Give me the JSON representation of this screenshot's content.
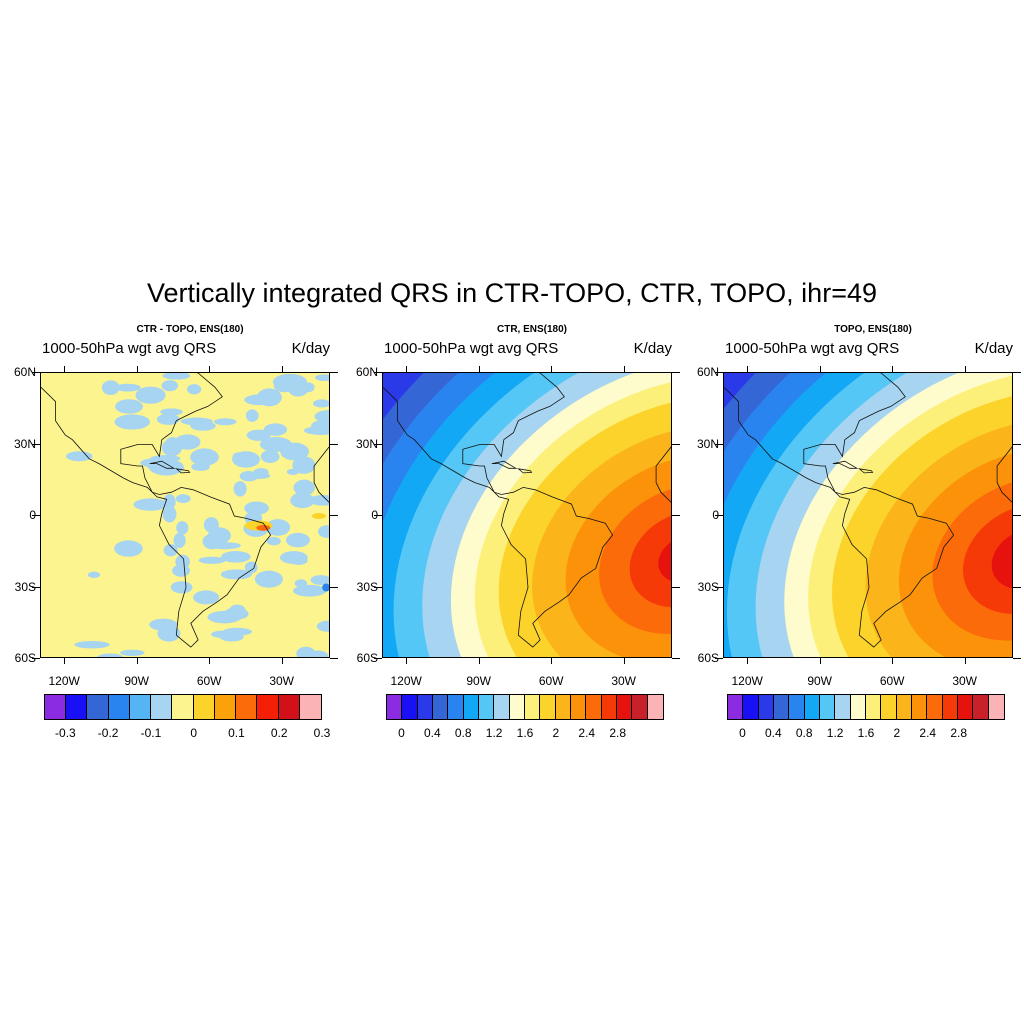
{
  "title": "Vertically integrated QRS in CTR-TOPO, CTR, TOPO, ihr=49",
  "panels": [
    {
      "subtitle": "CTR - TOPO, ENS(180)",
      "left_label": "1000-50hPa wgt avg QRS",
      "right_label": "K/day",
      "lat_labels": [
        "60N",
        "30N",
        "0",
        "30S",
        "60S"
      ],
      "lon_labels": [
        "120W",
        "90W",
        "60W",
        "30W"
      ],
      "colorbar": {
        "colors": [
          "#8b2be2",
          "#1a10f5",
          "#3566d6",
          "#2a84f0",
          "#55b5f4",
          "#a7d4f0",
          "#fcf48e",
          "#fcd32b",
          "#fba20a",
          "#fc6b0a",
          "#f51f08",
          "#d2101a",
          "#fcb3b5"
        ],
        "labels": [
          "-0.3",
          "-0.2",
          "-0.1",
          "0",
          "0.1",
          "0.2",
          "0.3"
        ]
      }
    },
    {
      "subtitle": "CTR, ENS(180)",
      "left_label": "1000-50hPa wgt avg QRS",
      "right_label": "K/day",
      "lat_labels": [
        "60N",
        "30N",
        "0",
        "30S",
        "60S"
      ],
      "lon_labels": [
        "120W",
        "90W",
        "60W",
        "30W"
      ],
      "colorbar": {
        "colors": [
          "#8b2be2",
          "#1a10f5",
          "#2a3ae8",
          "#3566d6",
          "#2a84f0",
          "#12a8f5",
          "#55c7f7",
          "#a7d4f0",
          "#fefbcc",
          "#fcf07a",
          "#fcd32b",
          "#fbb41a",
          "#fb920a",
          "#fc6b0a",
          "#f53a08",
          "#e6120d",
          "#c9212a",
          "#fcb3b5"
        ],
        "labels": [
          "0",
          "0.4",
          "0.8",
          "1.2",
          "1.6",
          "2",
          "2.4",
          "2.8"
        ]
      }
    },
    {
      "subtitle": "TOPO, ENS(180)",
      "left_label": "1000-50hPa wgt avg QRS",
      "right_label": "K/day",
      "lat_labels": [
        "60N",
        "30N",
        "0",
        "30S",
        "60S"
      ],
      "lon_labels": [
        "120W",
        "90W",
        "60W",
        "30W"
      ],
      "colorbar": {
        "colors": [
          "#8b2be2",
          "#1a10f5",
          "#2a3ae8",
          "#3566d6",
          "#2a84f0",
          "#12a8f5",
          "#55c7f7",
          "#a7d4f0",
          "#fefbcc",
          "#fcf07a",
          "#fcd32b",
          "#fbb41a",
          "#fb920a",
          "#fc6b0a",
          "#f53a08",
          "#e6120d",
          "#c9212a",
          "#fcb3b5"
        ],
        "labels": [
          "0",
          "0.4",
          "0.8",
          "1.2",
          "1.6",
          "2",
          "2.4",
          "2.8"
        ]
      }
    }
  ]
}
